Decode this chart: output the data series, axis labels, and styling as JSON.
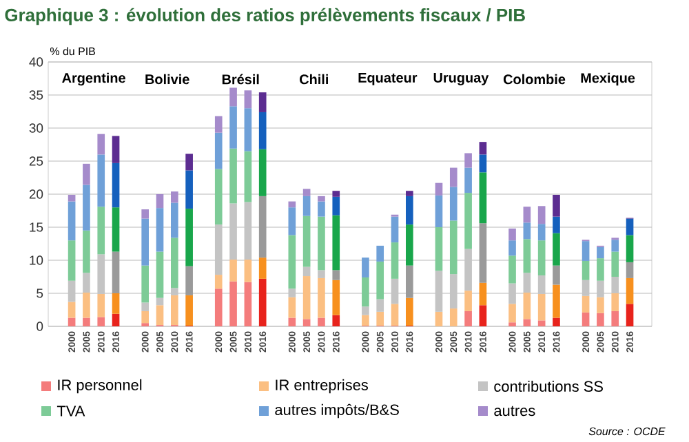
{
  "chart_data": {
    "type": "bar",
    "stacked": true,
    "title": "Graphique 3 : évolution des ratios prélèvements fiscaux / PIB",
    "ylabel": "% du PIB",
    "categories": [
      "2000",
      "2005",
      "2010",
      "2016",
      null,
      "2000",
      "2005",
      "2010",
      "2016",
      null,
      "2000",
      "2005",
      "2010",
      "2016",
      null,
      "2000",
      "2005",
      "2010",
      "2016",
      null,
      "2000",
      "2005",
      "2010",
      "2016",
      null,
      "2000",
      "2005",
      "2010",
      "2016",
      null,
      "2000",
      "2005",
      "2010",
      "2016",
      null,
      "2000",
      "2005",
      "2010",
      "2016"
    ],
    "ylim": [
      0,
      40
    ],
    "yticks": [
      0,
      5,
      10,
      15,
      20,
      25,
      30,
      35,
      40
    ],
    "grid": "y",
    "legend": "bottom",
    "annotations": [
      "Argentine",
      "Bolivie",
      "Brésil",
      "Chili",
      "Equateur",
      "Uruguay",
      "Colombie",
      "Mexique",
      "Source : OCDE"
    ],
    "series": [
      {
        "name": "IR personnel",
        "color": "#f47c7c",
        "values": [
          1.3,
          1.3,
          1.4,
          1.9,
          null,
          0.5,
          0.2,
          0.2,
          0.1,
          null,
          5.7,
          6.8,
          6.7,
          7.2,
          null,
          1.3,
          1.1,
          1.3,
          1.7,
          null,
          0.1,
          0.1,
          0.1,
          0.1,
          null,
          0,
          0,
          2.3,
          3.2,
          null,
          0.6,
          1.1,
          0.9,
          1.3,
          null,
          2.1,
          2.0,
          2.3,
          3.4
        ],
        "colors": [
          "#f47c7c",
          "#f47c7c",
          "#f47c7c",
          "#e8231c",
          null,
          "#f47c7c",
          "#f47c7c",
          "#f47c7c",
          "#e8231c",
          null,
          "#f47c7c",
          "#f47c7c",
          "#f47c7c",
          "#e8231c",
          null,
          "#f47c7c",
          "#f47c7c",
          "#f47c7c",
          "#e8231c",
          null,
          "#f47c7c",
          "#f47c7c",
          "#f47c7c",
          "#e8231c",
          null,
          "#f47c7c",
          "#f47c7c",
          "#f47c7c",
          "#e8231c",
          null,
          "#f47c7c",
          "#f47c7c",
          "#f47c7c",
          "#e8231c",
          null,
          "#f47c7c",
          "#f47c7c",
          "#f47c7c",
          "#e8231c"
        ]
      },
      {
        "name": "IR entreprises",
        "color": "#fbbf82",
        "values": [
          2.4,
          3.8,
          3.5,
          3.1,
          null,
          1.8,
          3.0,
          4.5,
          4.6,
          null,
          2.1,
          3.3,
          3.4,
          3.2,
          null,
          3.1,
          6.5,
          6.0,
          5.3,
          null,
          1.6,
          2.1,
          3.3,
          4.2,
          null,
          2.2,
          2.7,
          3.1,
          3.4,
          null,
          2.8,
          4.0,
          4.0,
          5.0,
          null,
          2.5,
          2.4,
          2.7,
          3.9
        ],
        "colors": [
          "#fbbf82",
          "#fbbf82",
          "#fbbf82",
          "#f7901e",
          null,
          "#fbbf82",
          "#fbbf82",
          "#fbbf82",
          "#f7901e",
          null,
          "#fbbf82",
          "#fbbf82",
          "#fbbf82",
          "#f7901e",
          null,
          "#fbbf82",
          "#fbbf82",
          "#fbbf82",
          "#f7901e",
          null,
          "#fbbf82",
          "#fbbf82",
          "#fbbf82",
          "#f7901e",
          null,
          "#fbbf82",
          "#fbbf82",
          "#fbbf82",
          "#f7901e",
          null,
          "#fbbf82",
          "#fbbf82",
          "#fbbf82",
          "#f7901e",
          null,
          "#fbbf82",
          "#fbbf82",
          "#fbbf82",
          "#f7901e"
        ]
      },
      {
        "name": "contributions SS",
        "color": "#c4c4c4",
        "values": [
          3.2,
          3.0,
          6.0,
          6.3,
          null,
          1.3,
          1.1,
          1.1,
          4.4,
          null,
          7.6,
          8.5,
          8.7,
          9.3,
          null,
          1.3,
          1.4,
          1.2,
          1.5,
          null,
          1.3,
          1.9,
          3.8,
          4.9,
          null,
          6.2,
          5.2,
          6.3,
          9.0,
          null,
          3.1,
          3.0,
          2.8,
          2.9,
          null,
          2.4,
          2.5,
          2.5,
          2.4
        ],
        "colors": [
          "#c4c4c4",
          "#c4c4c4",
          "#c4c4c4",
          "#9a9a9a",
          null,
          "#c4c4c4",
          "#c4c4c4",
          "#c4c4c4",
          "#9a9a9a",
          null,
          "#c4c4c4",
          "#c4c4c4",
          "#c4c4c4",
          "#9a9a9a",
          null,
          "#c4c4c4",
          "#c4c4c4",
          "#c4c4c4",
          "#9a9a9a",
          null,
          "#c4c4c4",
          "#c4c4c4",
          "#c4c4c4",
          "#9a9a9a",
          null,
          "#c4c4c4",
          "#c4c4c4",
          "#c4c4c4",
          "#9a9a9a",
          null,
          "#c4c4c4",
          "#c4c4c4",
          "#c4c4c4",
          "#9a9a9a",
          null,
          "#c4c4c4",
          "#c4c4c4",
          "#c4c4c4",
          "#9a9a9a"
        ]
      },
      {
        "name": "TVA",
        "color": "#7dcb97",
        "values": [
          6.1,
          6.4,
          7.2,
          6.7,
          null,
          5.6,
          7.0,
          7.6,
          8.7,
          null,
          8.4,
          8.3,
          7.7,
          7.1,
          null,
          8.1,
          7.7,
          8.1,
          8.3,
          null,
          4.4,
          5.7,
          5.5,
          6.2,
          null,
          6.6,
          8.1,
          8.5,
          7.7,
          null,
          4.2,
          5.1,
          5.3,
          4.9,
          null,
          2.9,
          3.4,
          3.8,
          4.1
        ],
        "colors": [
          "#7dcb97",
          "#7dcb97",
          "#7dcb97",
          "#19a64b",
          null,
          "#7dcb97",
          "#7dcb97",
          "#7dcb97",
          "#19a64b",
          null,
          "#7dcb97",
          "#7dcb97",
          "#7dcb97",
          "#19a64b",
          null,
          "#7dcb97",
          "#7dcb97",
          "#7dcb97",
          "#19a64b",
          null,
          "#7dcb97",
          "#7dcb97",
          "#7dcb97",
          "#19a64b",
          null,
          "#7dcb97",
          "#7dcb97",
          "#7dcb97",
          "#19a64b",
          null,
          "#7dcb97",
          "#7dcb97",
          "#7dcb97",
          "#19a64b",
          null,
          "#7dcb97",
          "#7dcb97",
          "#7dcb97",
          "#19a64b"
        ]
      },
      {
        "name": "autres impôts/B&S",
        "color": "#6fa0d8",
        "values": [
          5.9,
          6.9,
          7.9,
          6.7,
          null,
          7.1,
          6.6,
          5.3,
          5.8,
          null,
          5.5,
          6.4,
          6.5,
          5.6,
          null,
          4.2,
          3.0,
          2.3,
          2.8,
          null,
          3.0,
          2.4,
          3.9,
          4.3,
          null,
          4.8,
          5.1,
          3.8,
          2.7,
          null,
          2.3,
          2.5,
          2.5,
          2.5,
          null,
          3.0,
          1.7,
          1.8,
          2.5
        ],
        "colors": [
          "#6fa0d8",
          "#6fa0d8",
          "#6fa0d8",
          "#1560bd",
          null,
          "#6fa0d8",
          "#6fa0d8",
          "#6fa0d8",
          "#1560bd",
          null,
          "#6fa0d8",
          "#6fa0d8",
          "#6fa0d8",
          "#1560bd",
          null,
          "#6fa0d8",
          "#6fa0d8",
          "#6fa0d8",
          "#1560bd",
          null,
          "#6fa0d8",
          "#6fa0d8",
          "#6fa0d8",
          "#1560bd",
          null,
          "#6fa0d8",
          "#6fa0d8",
          "#6fa0d8",
          "#1560bd",
          null,
          "#6fa0d8",
          "#6fa0d8",
          "#6fa0d8",
          "#1560bd",
          null,
          "#6fa0d8",
          "#6fa0d8",
          "#6fa0d8",
          "#1560bd"
        ]
      },
      {
        "name": "autres",
        "color": "#a58bcb",
        "values": [
          1.0,
          3.2,
          3.1,
          4.1,
          null,
          1.4,
          2.1,
          1.7,
          2.5,
          null,
          2.5,
          2.8,
          2.7,
          3.0,
          null,
          0.9,
          1.1,
          0.8,
          0.9,
          null,
          0,
          0,
          0.3,
          0.8,
          null,
          1.9,
          2.9,
          2.2,
          1.9,
          null,
          1.8,
          2.4,
          2.7,
          3.3,
          null,
          0.2,
          0.2,
          0.3,
          0.1
        ],
        "colors": [
          "#a58bcb",
          "#a58bcb",
          "#a58bcb",
          "#5c2d91",
          null,
          "#a58bcb",
          "#a58bcb",
          "#a58bcb",
          "#5c2d91",
          null,
          "#a58bcb",
          "#a58bcb",
          "#a58bcb",
          "#5c2d91",
          null,
          "#a58bcb",
          "#a58bcb",
          "#a58bcb",
          "#5c2d91",
          null,
          "#a58bcb",
          "#a58bcb",
          "#a58bcb",
          "#5c2d91",
          null,
          "#a58bcb",
          "#a58bcb",
          "#a58bcb",
          "#5c2d91",
          null,
          "#a58bcb",
          "#a58bcb",
          "#a58bcb",
          "#5c2d91",
          null,
          "#a58bcb",
          "#a58bcb",
          "#a58bcb",
          "#5c2d91"
        ]
      }
    ]
  }
}
